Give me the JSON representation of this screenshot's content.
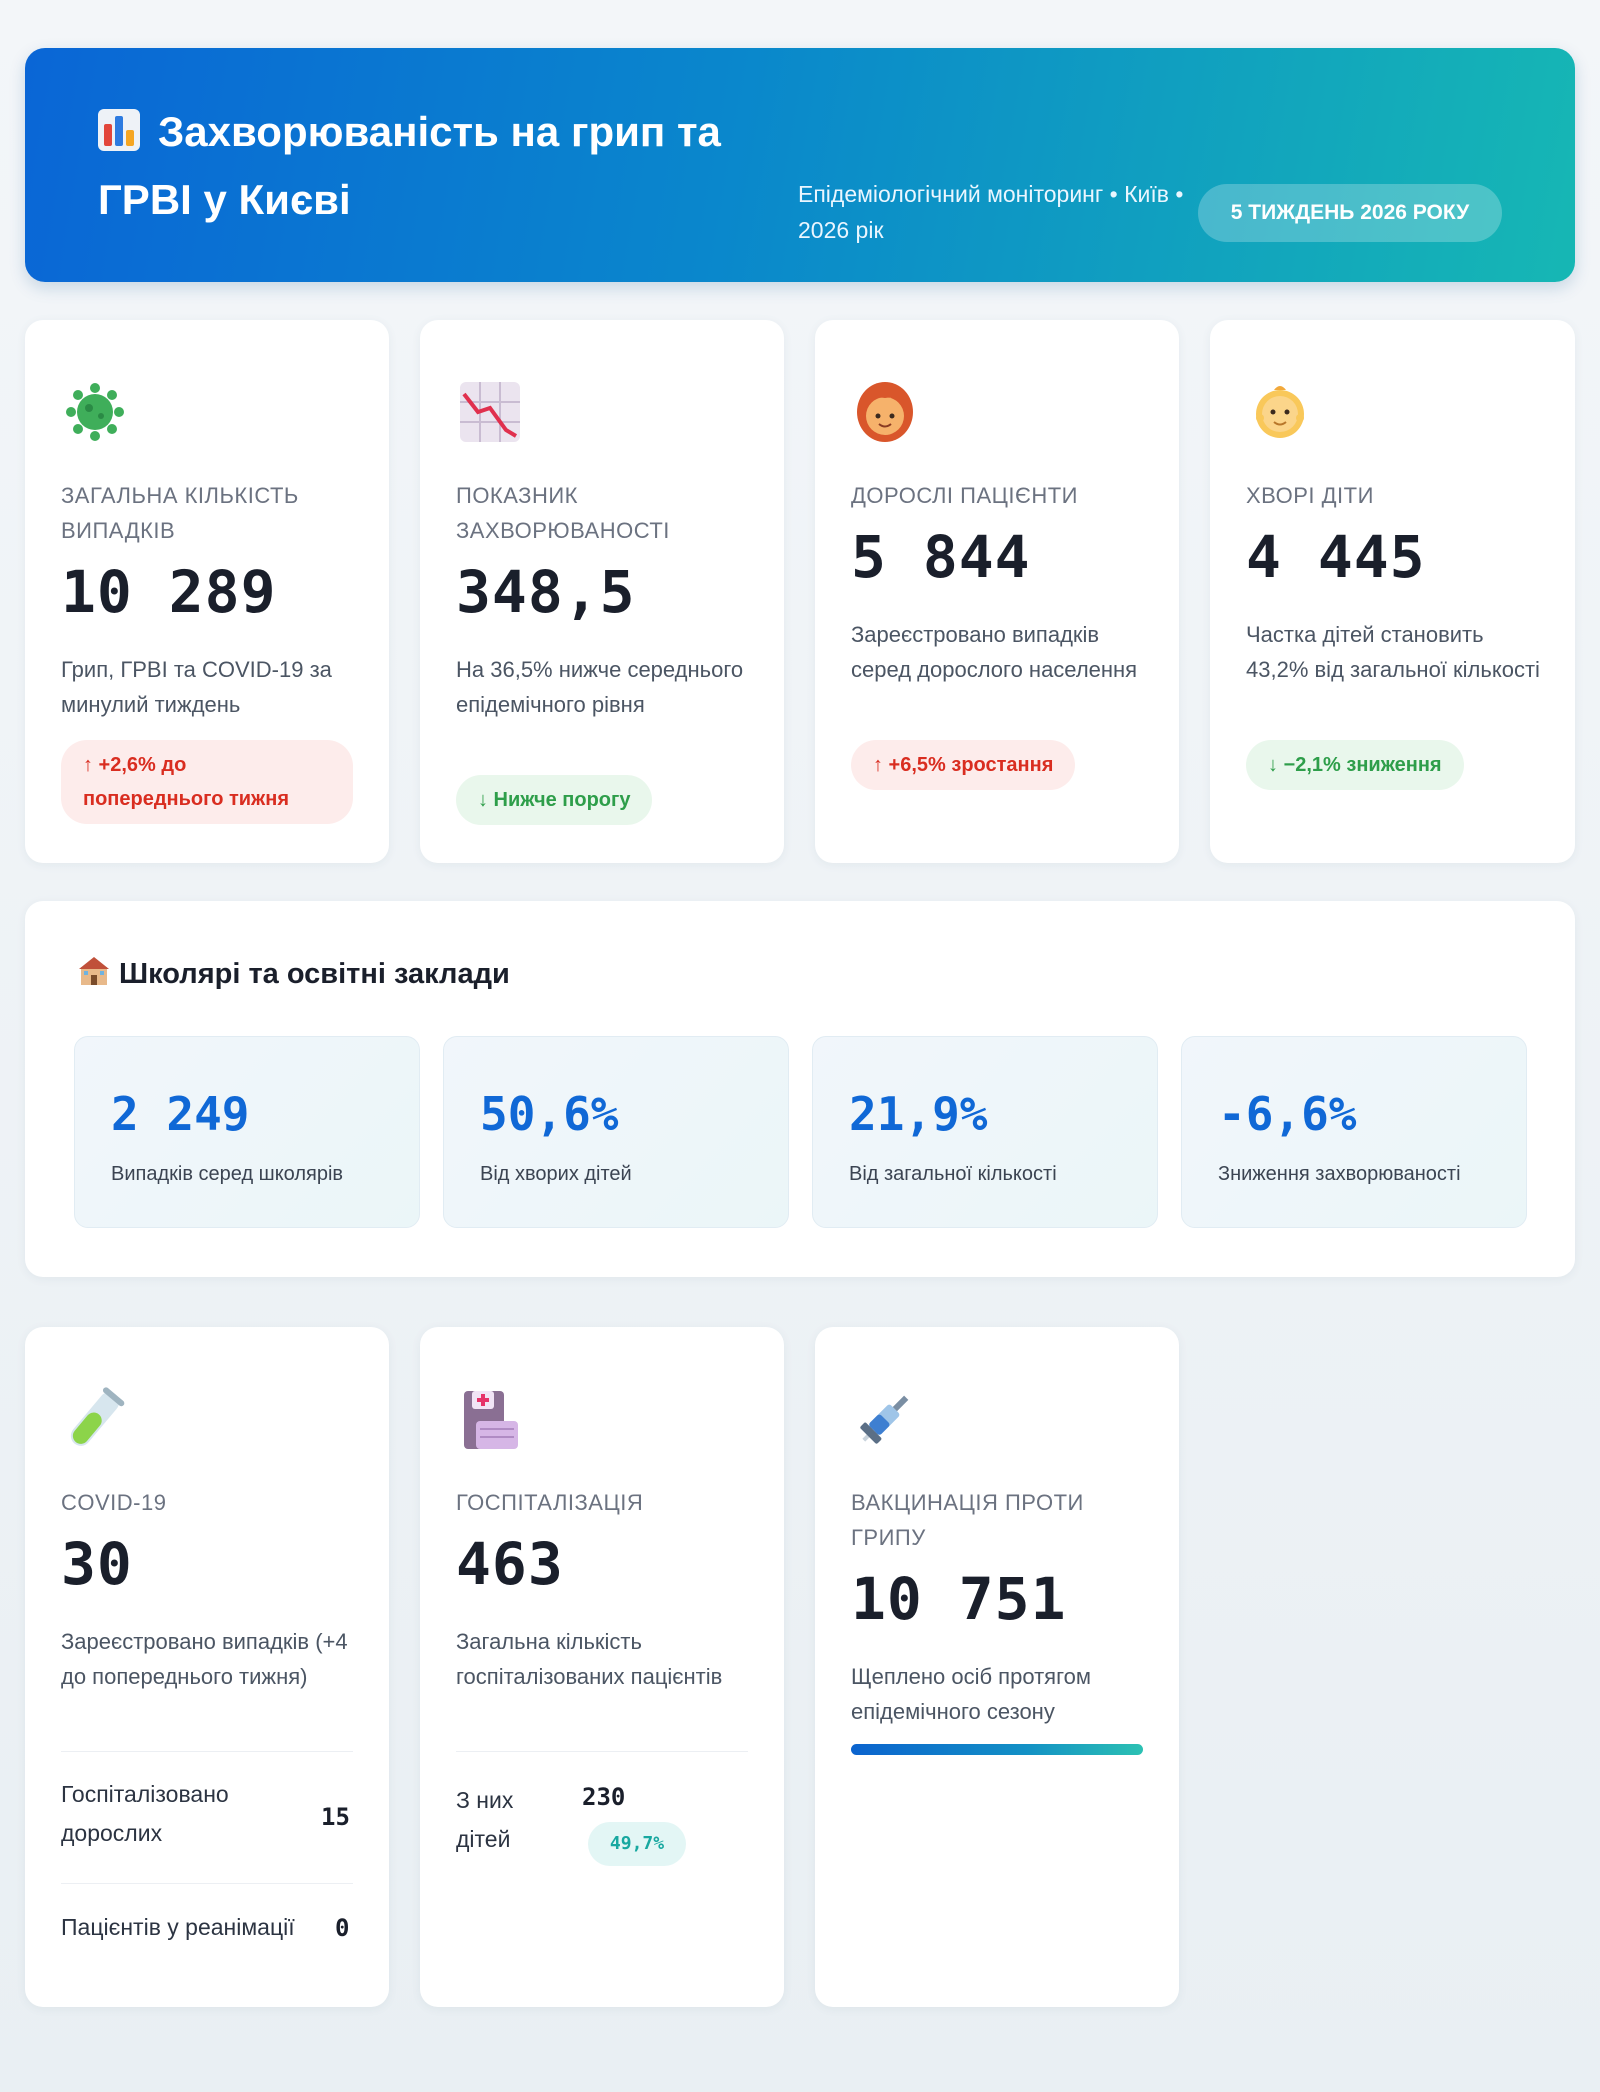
{
  "header": {
    "title": "Захворюваність на грип та ГРВІ у Києві",
    "subtitle": "Епідеміологічний моніторинг • Київ • 2026 рік",
    "week_badge": "5 ТИЖДЕНЬ 2026 РОКУ",
    "icon": "bar-chart-icon"
  },
  "stats": [
    {
      "icon": "virus-icon",
      "label": "ЗАГАЛЬНА КІЛЬКІСТЬ ВИПАДКІВ",
      "value": "10 289",
      "desc": "Грип, ГРВІ та COVID-19 за минулий тиждень",
      "badge": "↑ +2,6% до попереднього тижня",
      "badge_type": "up"
    },
    {
      "icon": "chart-down-icon",
      "label": "ПОКАЗНИК ЗАХВОРЮВАНОСТІ",
      "value": "348,5",
      "desc": "На 36,5% нижче середнього епідемічного рівня",
      "badge": "↓ Нижче порогу",
      "badge_type": "down"
    },
    {
      "icon": "woman-icon",
      "label": "ДОРОСЛІ ПАЦІЄНТИ",
      "value": "5 844",
      "desc": "Зареєстровано випадків серед дорослого населення",
      "badge": "↑ +6,5% зростання",
      "badge_type": "up"
    },
    {
      "icon": "baby-icon",
      "label": "ХВОРІ ДІТИ",
      "value": "4 445",
      "desc": "Частка дітей становить 43,2% від загальної кількості",
      "badge": "↓ −2,1% зниження",
      "badge_type": "down"
    }
  ],
  "schools": {
    "title": "Школярі та освітні заклади",
    "icon": "school-icon",
    "items": [
      {
        "value": "2 249",
        "label": "Випадків серед школярів"
      },
      {
        "value": "50,6%",
        "label": "Від хворих дітей"
      },
      {
        "value": "21,9%",
        "label": "Від загальної кількості"
      },
      {
        "value": "-6,6%",
        "label": "Зниження захворюваності"
      }
    ]
  },
  "covid": {
    "icon": "test-tube-icon",
    "label": "COVID-19",
    "value": "30",
    "desc": "Зареєстровано випадків (+4 до попереднього тижня)",
    "hosp_label": "Госпіталізовано дорослих",
    "hosp_value": "15",
    "icu_label": "Пацієнтів у реанімації",
    "icu_value": "0"
  },
  "hospital": {
    "icon": "hospital-icon",
    "label": "ГОСПІТАЛІЗАЦІЯ",
    "value": "463",
    "desc": "Загальна кількість госпіталізованих пацієнтів",
    "children_label": "З них дітей",
    "children_value": "230",
    "children_pct": "49,7%"
  },
  "vaccination": {
    "icon": "syringe-icon",
    "label": "ВАКЦИНАЦІЯ ПРОТИ ГРИПУ",
    "value": "10 751",
    "desc": "Щеплено осіб протягом епідемічного сезону",
    "progress": 1.0
  }
}
